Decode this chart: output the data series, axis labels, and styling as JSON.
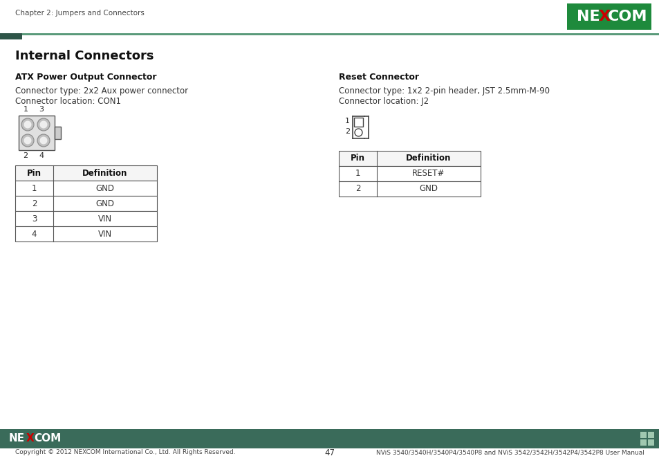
{
  "page_title": "Chapter 2: Jumpers and Connectors",
  "section_title": "Internal Connectors",
  "bg_color": "#ffffff",
  "teal_color": "#3a6b5a",
  "teal_light": "#5a9a7a",
  "page_number": "47",
  "footer_left": "Copyright © 2012 NEXCOM International Co., Ltd. All Rights Reserved.",
  "footer_right": "NViS 3540/3540H/3540P4/3540P8 and NViS 3542/3542H/3542P4/3542P8 User Manual",
  "left_section_title": "ATX Power Output Connector",
  "left_line1": "Connector type: 2x2 Aux power connector",
  "left_line2": "Connector location: CON1",
  "left_table_headers": [
    "Pin",
    "Definition"
  ],
  "left_table_rows": [
    [
      "1",
      "GND"
    ],
    [
      "2",
      "GND"
    ],
    [
      "3",
      "VIN"
    ],
    [
      "4",
      "VIN"
    ]
  ],
  "right_section_title": "Reset Connector",
  "right_line1": "Connector type: 1x2 2-pin header, JST 2.5mm-M-90",
  "right_line2": "Connector location: J2",
  "right_table_headers": [
    "Pin",
    "Definition"
  ],
  "right_table_rows": [
    [
      "1",
      "RESET#"
    ],
    [
      "2",
      "GND"
    ]
  ]
}
